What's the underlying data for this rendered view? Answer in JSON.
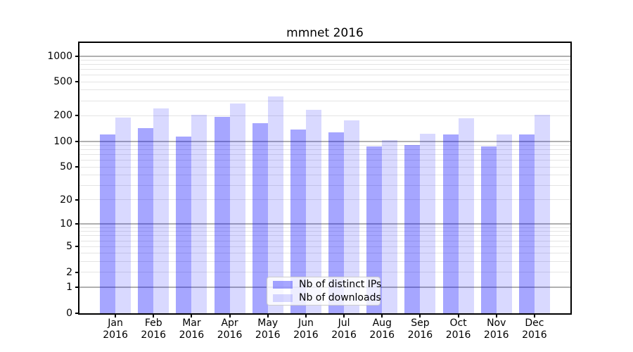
{
  "chart_data": {
    "type": "bar",
    "title": "mmnet 2016",
    "categories": [
      "Jan",
      "Feb",
      "Mar",
      "Apr",
      "May",
      "Jun",
      "Jul",
      "Aug",
      "Sep",
      "Oct",
      "Nov",
      "Dec"
    ],
    "x_axis": {
      "year_label": "2016"
    },
    "y_axis": {
      "scale": "log10(value+1)",
      "ticks": [
        0,
        1,
        2,
        5,
        10,
        20,
        50,
        100,
        200,
        500,
        1000
      ],
      "major_gridlines": [
        1,
        10,
        100,
        1000
      ],
      "minor_gridlines": [
        2,
        3,
        4,
        5,
        6,
        7,
        8,
        9,
        20,
        30,
        40,
        50,
        60,
        70,
        80,
        90,
        200,
        300,
        400,
        500,
        600,
        700,
        800,
        900
      ],
      "axis_max": 1420,
      "ylim": [
        0,
        1420
      ]
    },
    "series": [
      {
        "name": "Nb of distinct IPs",
        "color": "rgba(0,0,255,0.35)",
        "values": [
          120,
          142,
          115,
          194,
          164,
          137,
          127,
          87,
          91,
          121,
          88,
          121
        ]
      },
      {
        "name": "Nb of downloads",
        "color": "rgba(0,0,255,0.15)",
        "values": [
          190,
          246,
          205,
          281,
          335,
          233,
          177,
          104,
          123,
          186,
          121,
          204
        ]
      }
    ],
    "legend_position": "lower-center",
    "grid": true
  },
  "colors": {
    "spine": "#000000",
    "grid_major": "#b0b0b0",
    "grid_minor": "#e4e4e4",
    "legend_border": "#cccccc",
    "text": "#000000"
  }
}
